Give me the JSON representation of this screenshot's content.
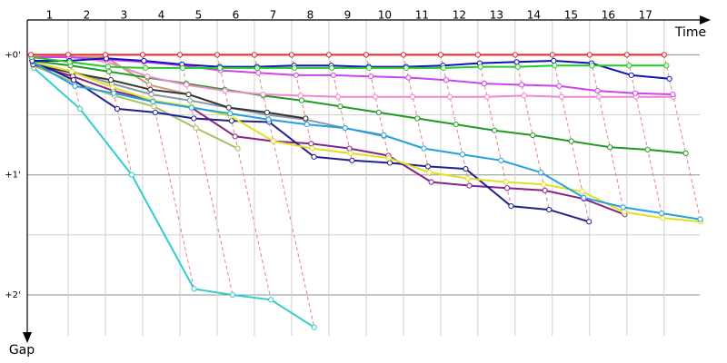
{
  "chart_data": {
    "type": "line",
    "x_label": "Time",
    "y_label": "Gap",
    "x": [
      0,
      1,
      2,
      3,
      4,
      5,
      6,
      7,
      8,
      9,
      10,
      11,
      12,
      13,
      14,
      15,
      16,
      17
    ],
    "xlim": [
      0,
      18.2
    ],
    "xticks": [
      1,
      2,
      3,
      4,
      5,
      6,
      7,
      8,
      9,
      10,
      11,
      12,
      13,
      14,
      15,
      16,
      17
    ],
    "ylim": [
      -0.29,
      2.34
    ],
    "yticks": [
      {
        "value": 0,
        "label": "+0'"
      },
      {
        "value": 1,
        "label": "+1'"
      },
      {
        "value": 2,
        "label": "+2'"
      }
    ],
    "minor_yticks": [
      0.5,
      1.5
    ],
    "grid": true,
    "series": [
      {
        "color": "#33cccc",
        "values": [
          0.11,
          0.45,
          1.0,
          1.95,
          2.0,
          2.04,
          2.27,
          null,
          null,
          null,
          null,
          null,
          null,
          null,
          null,
          null,
          null,
          null
        ]
      },
      {
        "color": "#cc9977",
        "values": [
          0.02,
          0.02,
          0.02,
          0.25,
          0.33,
          null,
          null,
          null,
          null,
          null,
          null,
          null,
          null,
          null,
          null,
          null,
          null,
          null
        ]
      },
      {
        "color": "#aac060",
        "values": [
          0.09,
          0.23,
          0.34,
          0.43,
          0.61,
          0.78,
          null,
          null,
          null,
          null,
          null,
          null,
          null,
          null,
          null,
          null,
          null,
          null
        ]
      },
      {
        "color": "#8899aa",
        "values": [
          0.06,
          0.14,
          0.24,
          0.33,
          0.38,
          0.44,
          0.5,
          0.54,
          0.61,
          0.68,
          null,
          null,
          null,
          null,
          null,
          null,
          null,
          null
        ]
      },
      {
        "color": "#333333",
        "values": [
          0.08,
          0.15,
          0.21,
          0.29,
          0.33,
          0.44,
          0.48,
          0.53,
          null,
          null,
          null,
          null,
          null,
          null,
          null,
          null,
          null,
          null
        ]
      },
      {
        "color": "#882288",
        "values": [
          0.08,
          0.18,
          0.3,
          0.38,
          0.44,
          0.68,
          0.72,
          0.74,
          0.78,
          0.84,
          1.06,
          1.09,
          1.11,
          1.13,
          1.2,
          1.33,
          null,
          null
        ]
      },
      {
        "color": "#202090",
        "values": [
          0.05,
          0.21,
          0.45,
          0.48,
          0.53,
          0.55,
          0.56,
          0.85,
          0.88,
          0.9,
          0.93,
          0.95,
          1.26,
          1.29,
          1.39,
          null,
          null,
          null
        ]
      },
      {
        "color": "#e0e020",
        "values": [
          0.06,
          0.14,
          0.27,
          0.38,
          0.43,
          0.51,
          0.72,
          0.78,
          0.82,
          0.86,
          0.98,
          1.03,
          1.06,
          1.08,
          1.14,
          1.31,
          1.36,
          1.39
        ]
      },
      {
        "color": "#22a0e0",
        "values": [
          0.06,
          0.26,
          0.32,
          0.39,
          0.44,
          0.49,
          0.54,
          0.58,
          0.61,
          0.67,
          0.78,
          0.83,
          0.88,
          0.98,
          1.19,
          1.27,
          1.32,
          1.37
        ]
      },
      {
        "color": "#229922",
        "values": [
          0.05,
          0.09,
          0.14,
          0.19,
          0.24,
          0.29,
          0.34,
          0.38,
          0.43,
          0.48,
          0.53,
          0.58,
          0.63,
          0.67,
          0.72,
          0.77,
          0.79,
          0.82
        ]
      },
      {
        "color": "#ee88cc",
        "values": [
          0.02,
          0.01,
          0.06,
          0.18,
          0.25,
          0.3,
          0.33,
          0.34,
          0.35,
          0.35,
          0.35,
          0.35,
          0.35,
          0.34,
          0.35,
          0.35,
          0.35,
          0.35
        ]
      },
      {
        "color": "#cc44ee",
        "values": [
          0.02,
          0.02,
          0.04,
          0.06,
          0.09,
          0.13,
          0.15,
          0.17,
          0.17,
          0.18,
          0.19,
          0.21,
          0.24,
          0.25,
          0.26,
          0.3,
          0.32,
          0.33
        ]
      },
      {
        "color": "#1010c0",
        "values": [
          0.05,
          0.05,
          0.03,
          0.05,
          0.08,
          0.1,
          0.1,
          0.09,
          0.09,
          0.1,
          0.1,
          0.09,
          0.07,
          0.06,
          0.05,
          0.07,
          0.17,
          0.2
        ]
      },
      {
        "color": "#22cc22",
        "values": [
          0.02,
          0.06,
          0.1,
          0.11,
          0.11,
          0.11,
          0.11,
          0.11,
          0.11,
          0.11,
          0.11,
          0.11,
          0.1,
          0.1,
          0.09,
          0.09,
          0.09,
          0.09
        ]
      },
      {
        "color": "#ee2222",
        "values": [
          0,
          0,
          0,
          0,
          0,
          0,
          0,
          0,
          0,
          0,
          0,
          0,
          0,
          0,
          0,
          0,
          0,
          0
        ]
      }
    ]
  }
}
